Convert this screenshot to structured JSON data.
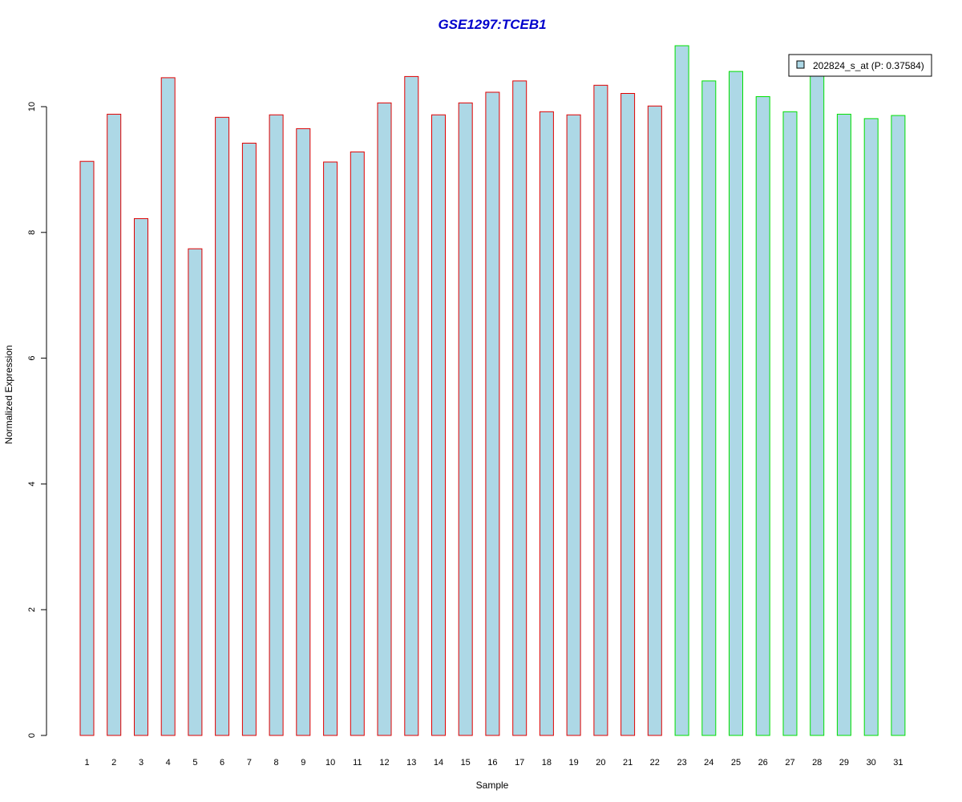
{
  "chart_data": {
    "type": "bar",
    "title": "GSE1297:TCEB1",
    "xlabel": "Sample",
    "ylabel": "Normalized Expression",
    "ylim": [
      0,
      11
    ],
    "yticks": [
      0,
      2,
      4,
      6,
      8,
      10
    ],
    "categories": [
      "1",
      "2",
      "3",
      "4",
      "5",
      "6",
      "7",
      "8",
      "9",
      "10",
      "11",
      "12",
      "13",
      "14",
      "15",
      "16",
      "17",
      "18",
      "19",
      "20",
      "21",
      "22",
      "23",
      "24",
      "25",
      "26",
      "27",
      "28",
      "29",
      "30",
      "31"
    ],
    "series": [
      {
        "name": "202824_s_at (P: 0.37584)",
        "values": [
          9.13,
          9.88,
          8.22,
          10.46,
          7.74,
          9.83,
          9.42,
          9.87,
          9.65,
          9.12,
          9.28,
          10.06,
          10.48,
          9.87,
          10.06,
          10.23,
          10.41,
          9.92,
          9.87,
          10.34,
          10.21,
          10.01,
          10.97,
          10.41,
          10.56,
          10.16,
          9.92,
          10.52,
          9.88,
          9.81,
          9.86
        ]
      }
    ],
    "group_of_bar": [
      1,
      1,
      1,
      1,
      1,
      1,
      1,
      1,
      1,
      1,
      1,
      1,
      1,
      1,
      1,
      1,
      1,
      1,
      1,
      1,
      1,
      1,
      2,
      2,
      2,
      2,
      2,
      2,
      2,
      2,
      2
    ],
    "colors": {
      "fill": "#ADD8E6",
      "group1_border": "#E00000",
      "group2_border": "#00E000",
      "title": "#0000CC"
    },
    "legend": {
      "position": "top-right",
      "label": "202824_s_at (P: 0.37584)"
    },
    "grid": false
  }
}
